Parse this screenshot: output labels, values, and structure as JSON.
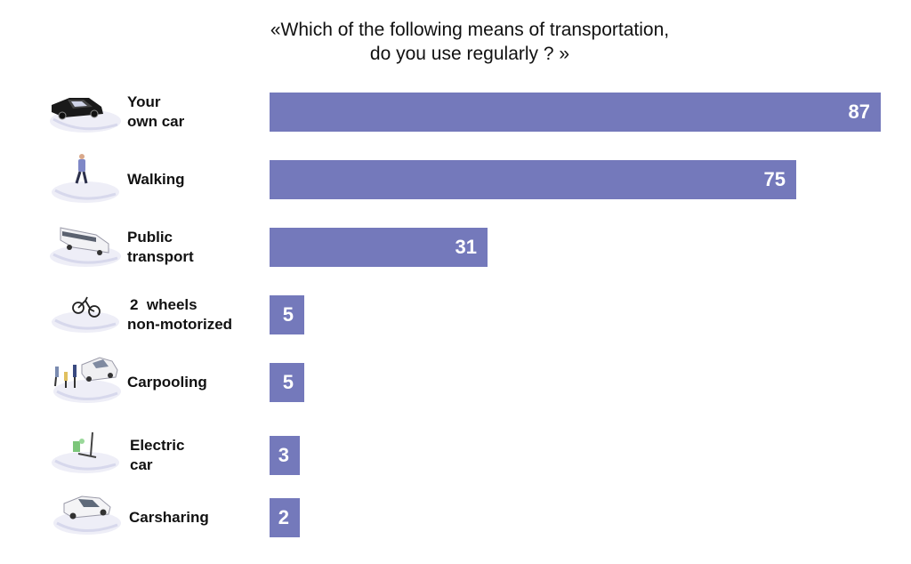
{
  "title": {
    "line1": "«Which of the following means of transportation,",
    "line2": "do you use regularly ? »"
  },
  "chart_data": {
    "type": "bar",
    "orientation": "horizontal",
    "title": "«Which of the following means of transportation, do you use regularly ? »",
    "categories": [
      "Your own car",
      "Walking",
      "Public transport",
      "2 wheels non-motorized",
      "Carpooling",
      "Electric car",
      "Carsharing"
    ],
    "values": [
      87,
      75,
      31,
      5,
      5,
      3,
      2
    ],
    "xlim": [
      0,
      87
    ],
    "grid": false,
    "bar_color": "#7479bb",
    "data_labels": true
  },
  "rows": [
    {
      "label_lines": [
        "Your",
        "own car"
      ],
      "value": "87",
      "icon": "black-car-icon"
    },
    {
      "label_lines": [
        "Walking"
      ],
      "value": "75",
      "icon": "walking-person-icon"
    },
    {
      "label_lines": [
        "Public",
        "transport"
      ],
      "value": "31",
      "icon": "bus-icon"
    },
    {
      "label_lines": [
        "2  wheels",
        "non-motorized"
      ],
      "value": "5",
      "icon": "bicycle-icon"
    },
    {
      "label_lines": [
        "Carpooling"
      ],
      "value": "5",
      "icon": "carpooling-people-car-icon"
    },
    {
      "label_lines": [
        "Electric",
        "car"
      ],
      "value": "3",
      "icon": "electric-charging-station-icon"
    },
    {
      "label_lines": [
        "Carsharing"
      ],
      "value": "2",
      "icon": "white-car-icon"
    }
  ]
}
